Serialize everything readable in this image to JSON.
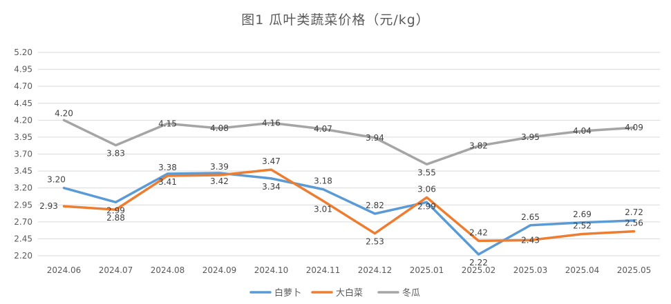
{
  "chart_data": {
    "type": "line",
    "title": "图1  瓜叶类蔬菜价格（元/kg）",
    "xlabel": "",
    "ylabel": "",
    "categories": [
      "2024.06",
      "2024.07",
      "2024.08",
      "2024.09",
      "2024.10",
      "2024.11",
      "2024.12",
      "2025.01",
      "2025.02",
      "2025.03",
      "2025.04",
      "2025.05"
    ],
    "ylim": [
      2.2,
      5.2
    ],
    "yticks": [
      "5.20",
      "4.95",
      "4.70",
      "4.45",
      "4.20",
      "3.95",
      "3.70",
      "3.45",
      "3.20",
      "2.95",
      "2.70",
      "2.45",
      "2.20"
    ],
    "grid": true,
    "legend_position": "bottom",
    "series": [
      {
        "name": "白萝卜",
        "color": "#5B9BD5",
        "values": [
          3.2,
          2.99,
          3.41,
          3.42,
          3.34,
          3.18,
          2.82,
          2.99,
          2.22,
          2.65,
          2.69,
          2.72
        ],
        "labels": [
          "3.20",
          "2.99",
          "3.41",
          "3.42",
          "3.34",
          "3.18",
          "2.82",
          "2.99",
          "2.22",
          "2.65",
          "2.69",
          "2.72"
        ]
      },
      {
        "name": "大白菜",
        "color": "#ED7D31",
        "values": [
          2.93,
          2.88,
          3.38,
          3.39,
          3.47,
          3.01,
          2.53,
          3.06,
          2.42,
          2.43,
          2.52,
          2.56
        ],
        "labels": [
          "2.93",
          "2.88",
          "3.38",
          "3.39",
          "3.47",
          "3.01",
          "2.53",
          "3.06",
          "2.42",
          "2.43",
          "2.52",
          "2.56"
        ]
      },
      {
        "name": "冬瓜",
        "color": "#A5A5A5",
        "values": [
          4.2,
          3.83,
          4.15,
          4.08,
          4.16,
          4.07,
          3.94,
          3.55,
          3.82,
          3.95,
          4.04,
          4.09
        ],
        "labels": [
          "4.20",
          "3.83",
          "4.15",
          "4.08",
          "4.16",
          "4.07",
          "3.94",
          "3.55",
          "3.82",
          "3.95",
          "4.04",
          "4.09"
        ]
      }
    ]
  }
}
